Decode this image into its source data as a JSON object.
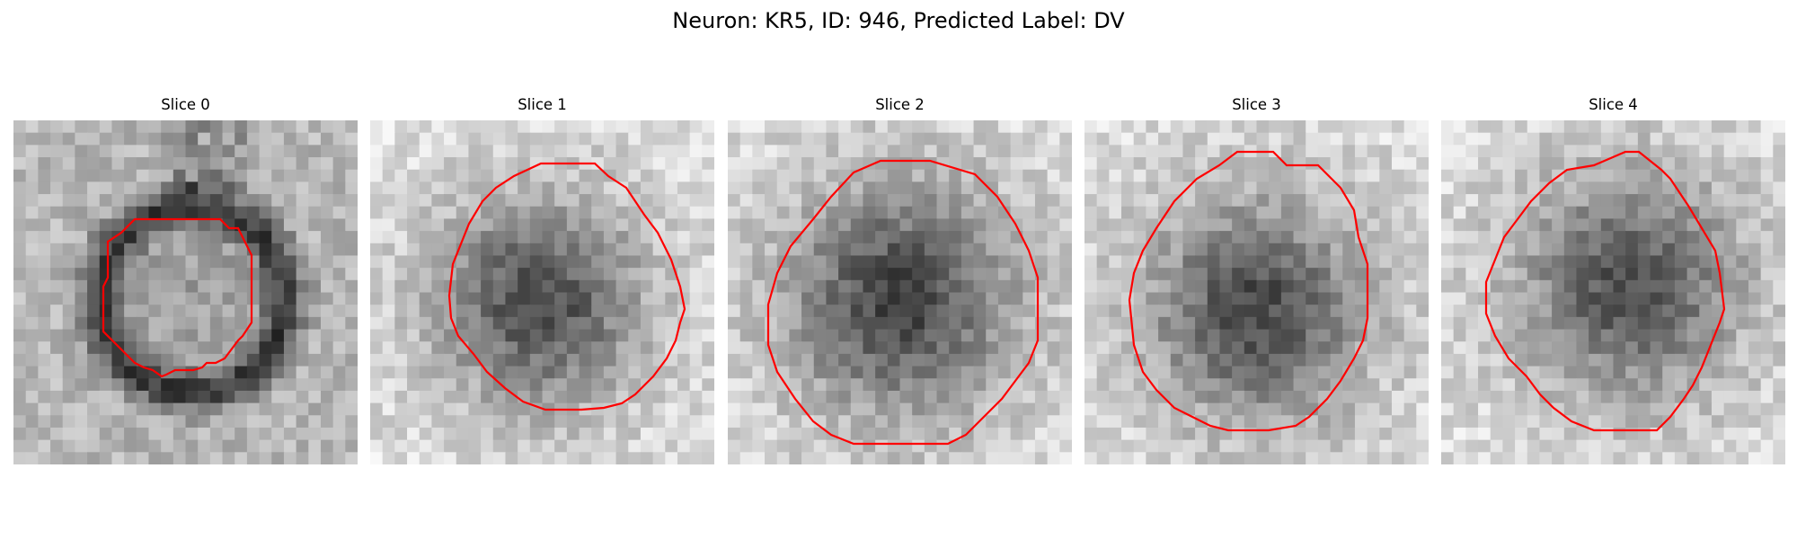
{
  "figure": {
    "title": "Neuron: KR5, ID: 946, Predicted Label: DV"
  },
  "panels": [
    {
      "title": "Slice 0",
      "contour_color": "#ff0000",
      "cell_center": [
        0.52,
        0.52
      ],
      "cell_radius": 0.27,
      "dark_ring": true,
      "inner_dark": 0.15
    },
    {
      "title": "Slice 1",
      "contour_color": "#ff0000",
      "cell_center": [
        0.49,
        0.53
      ],
      "cell_radius": 0.33,
      "dark_ring": false,
      "inner_dark": 0.7
    },
    {
      "title": "Slice 2",
      "contour_color": "#ff0000",
      "cell_center": [
        0.5,
        0.52
      ],
      "cell_radius": 0.38,
      "dark_ring": false,
      "inner_dark": 0.75
    },
    {
      "title": "Slice 3",
      "contour_color": "#ff0000",
      "cell_center": [
        0.5,
        0.55
      ],
      "cell_radius": 0.36,
      "dark_ring": false,
      "inner_dark": 0.7
    },
    {
      "title": "Slice 4",
      "contour_color": "#ff0000",
      "cell_center": [
        0.55,
        0.48
      ],
      "cell_radius": 0.36,
      "dark_ring": false,
      "inner_dark": 0.65
    }
  ]
}
